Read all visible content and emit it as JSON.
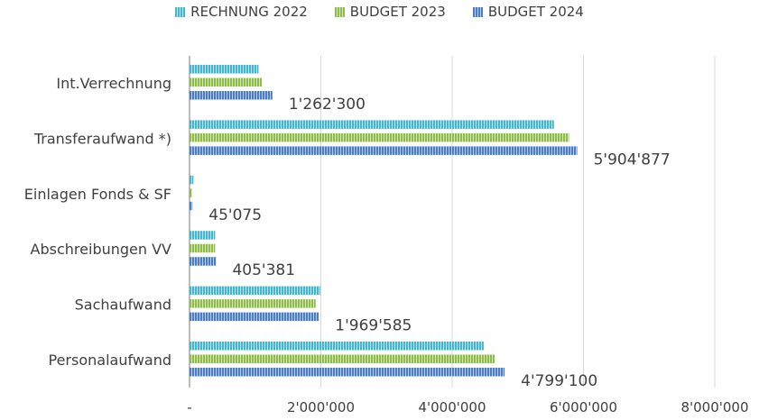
{
  "chart_data": {
    "type": "bar",
    "orientation": "horizontal",
    "categories": [
      "Int.Verrechnung",
      "Transferaufwand *)",
      "Einlagen Fonds & SF",
      "Abschreibungen VV",
      "Sachaufwand",
      "Personalaufwand"
    ],
    "series": [
      {
        "name": "RECHNUNG 2022",
        "color": "#44b6d0",
        "values": [
          1050000,
          5550000,
          60000,
          390000,
          1990000,
          4480000
        ]
      },
      {
        "name": "BUDGET 2023",
        "color": "#8fbc49",
        "values": [
          1100000,
          5780000,
          40000,
          390000,
          1920000,
          4650000
        ]
      },
      {
        "name": "BUDGET 2024",
        "color": "#4a7dc4",
        "values": [
          1262300,
          5904877,
          45075,
          405381,
          1969585,
          4799100
        ]
      }
    ],
    "data_labels": [
      "1'262'300",
      "5'904'877",
      "45'075",
      "405'381",
      "1'969'585",
      "4'799'100"
    ],
    "x_ticks": [
      0,
      2000000,
      4000000,
      6000000,
      8000000
    ],
    "x_tick_labels": [
      "-",
      "2'000'000",
      "4'000'000",
      "6'000'000",
      "8'000'000"
    ],
    "xlim": [
      0,
      8000000
    ],
    "grid": "vertical",
    "legend_position": "top-center"
  }
}
